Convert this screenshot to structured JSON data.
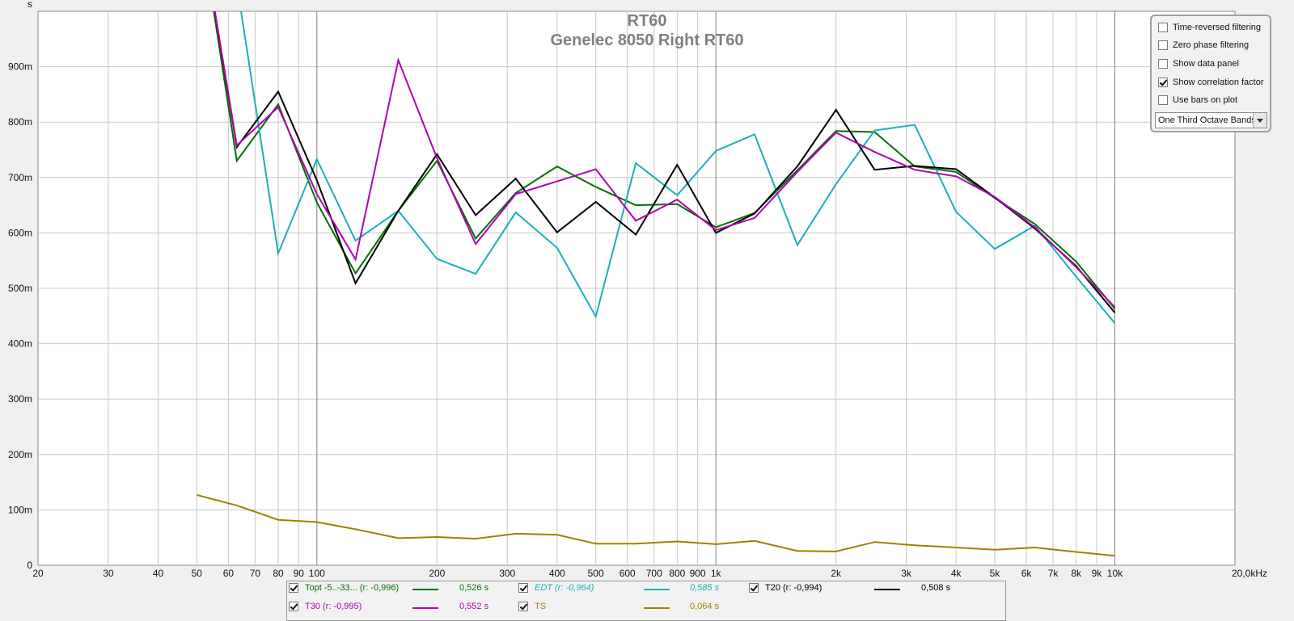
{
  "controls": {
    "time_reversed": {
      "label": "Time-reversed filtering",
      "checked": false
    },
    "zero_phase": {
      "label": "Zero phase filtering",
      "checked": false
    },
    "show_data_panel": {
      "label": "Show data panel",
      "checked": false
    },
    "show_correlation": {
      "label": "Show correlation factor",
      "checked": true
    },
    "use_bars": {
      "label": "Use bars on plot",
      "checked": false
    },
    "band_select": {
      "value": "One Third Octave Bands"
    }
  },
  "legend": {
    "topt": {
      "label": "Topt -5..-33... (r: -0,996)",
      "value": "0,526 s",
      "color": "#007000",
      "checked": true
    },
    "edt": {
      "label": "EDT (r: -0,964)",
      "value": "0,585 s",
      "color": "#19b0b8",
      "checked": true
    },
    "t20": {
      "label": "T20 (r: -0,994)",
      "value": "0,508 s",
      "color": "#000000",
      "checked": true
    },
    "t30": {
      "label": "T30 (r: -0,995)",
      "value": "0,552 s",
      "color": "#b000b0",
      "checked": true
    },
    "ts": {
      "label": "TS",
      "value": "0,064 s",
      "color": "#a08000",
      "checked": true
    }
  },
  "chart_data": {
    "type": "line",
    "title": "RT60",
    "subtitle": "Genelec 8050 Right RT60",
    "y_unit": "s",
    "x_unit": "kHz",
    "x_scale": "log",
    "xlim": [
      20,
      20000
    ],
    "ylim": [
      0,
      1.0
    ],
    "x_ticks": [
      {
        "v": 20,
        "label": "20"
      },
      {
        "v": 30,
        "label": "30"
      },
      {
        "v": 40,
        "label": "40"
      },
      {
        "v": 50,
        "label": "50"
      },
      {
        "v": 60,
        "label": "60"
      },
      {
        "v": 70,
        "label": "70"
      },
      {
        "v": 80,
        "label": "80"
      },
      {
        "v": 90,
        "label": "90"
      },
      {
        "v": 100,
        "label": "100"
      },
      {
        "v": 200,
        "label": "200"
      },
      {
        "v": 300,
        "label": "300"
      },
      {
        "v": 400,
        "label": "400"
      },
      {
        "v": 500,
        "label": "500"
      },
      {
        "v": 600,
        "label": "600"
      },
      {
        "v": 700,
        "label": "700"
      },
      {
        "v": 800,
        "label": "800"
      },
      {
        "v": 900,
        "label": "900"
      },
      {
        "v": 1000,
        "label": "1k"
      },
      {
        "v": 2000,
        "label": "2k"
      },
      {
        "v": 3000,
        "label": "3k"
      },
      {
        "v": 4000,
        "label": "4k"
      },
      {
        "v": 5000,
        "label": "5k"
      },
      {
        "v": 6000,
        "label": "6k"
      },
      {
        "v": 7000,
        "label": "7k"
      },
      {
        "v": 8000,
        "label": "8k"
      },
      {
        "v": 9000,
        "label": "9k"
      },
      {
        "v": 10000,
        "label": "10k"
      },
      {
        "v": 20000,
        "label": "20,0kHz"
      }
    ],
    "y_ticks": [
      {
        "v": 0,
        "label": "0"
      },
      {
        "v": 0.1,
        "label": "100m"
      },
      {
        "v": 0.2,
        "label": "200m"
      },
      {
        "v": 0.3,
        "label": "300m"
      },
      {
        "v": 0.4,
        "label": "400m"
      },
      {
        "v": 0.5,
        "label": "500m"
      },
      {
        "v": 0.6,
        "label": "600m"
      },
      {
        "v": 0.7,
        "label": "700m"
      },
      {
        "v": 0.8,
        "label": "800m"
      },
      {
        "v": 0.9,
        "label": "900m"
      },
      {
        "v": 1.0,
        "label": "s"
      }
    ],
    "x": [
      50,
      63,
      80,
      100,
      125,
      160,
      200,
      250,
      315,
      400,
      500,
      630,
      800,
      1000,
      1250,
      1600,
      2000,
      2500,
      3150,
      4000,
      5000,
      6300,
      8000,
      10000
    ],
    "series": [
      {
        "key": "topt",
        "color": "#007000",
        "values": [
          1.2,
          0.73,
          0.832,
          0.655,
          0.527,
          0.64,
          0.73,
          0.59,
          0.672,
          0.72,
          0.683,
          0.65,
          0.652,
          0.61,
          0.636,
          0.713,
          0.784,
          0.782,
          0.72,
          0.71,
          0.663,
          0.616,
          0.548,
          0.463
        ]
      },
      {
        "key": "edt",
        "color": "#19b0b8",
        "values": [
          null,
          1.05,
          0.563,
          0.733,
          0.586,
          0.64,
          0.553,
          0.526,
          0.637,
          0.573,
          0.449,
          0.726,
          0.668,
          0.748,
          0.778,
          0.578,
          0.688,
          0.785,
          0.795,
          0.638,
          0.571,
          0.613,
          0.521,
          0.437
        ]
      },
      {
        "key": "t20",
        "color": "#000000",
        "values": [
          1.2,
          0.755,
          0.855,
          0.695,
          0.509,
          0.64,
          0.742,
          0.632,
          0.698,
          0.601,
          0.656,
          0.597,
          0.723,
          0.6,
          0.635,
          0.72,
          0.822,
          0.714,
          0.721,
          0.715,
          0.664,
          0.608,
          0.54,
          0.456
        ]
      },
      {
        "key": "t30",
        "color": "#b000b0",
        "values": [
          1.2,
          0.758,
          0.827,
          0.67,
          0.552,
          0.912,
          0.735,
          0.58,
          0.67,
          0.693,
          0.715,
          0.622,
          0.66,
          0.605,
          0.627,
          0.71,
          0.781,
          0.746,
          0.714,
          0.702,
          0.665,
          0.61,
          0.538,
          0.466
        ]
      },
      {
        "key": "ts",
        "color": "#a08000",
        "values": [
          0.127,
          0.108,
          0.082,
          0.078,
          0.065,
          0.049,
          0.051,
          0.048,
          0.057,
          0.055,
          0.039,
          0.039,
          0.043,
          0.038,
          0.044,
          0.026,
          0.025,
          0.042,
          0.036,
          0.032,
          0.028,
          0.032,
          0.024,
          0.017
        ]
      }
    ]
  }
}
